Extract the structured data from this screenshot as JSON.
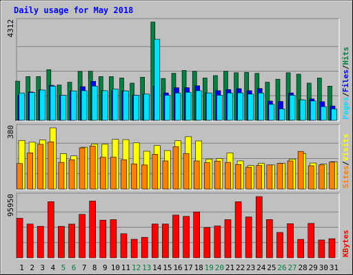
{
  "chart_data": {
    "type": "bar",
    "title": "Daily usage for May 2018",
    "days": [
      "1",
      "2",
      "3",
      "4",
      "5",
      "6",
      "7",
      "8",
      "9",
      "10",
      "11",
      "12",
      "13",
      "14",
      "15",
      "16",
      "17",
      "18",
      "19",
      "20",
      "21",
      "22",
      "23",
      "24",
      "25",
      "26",
      "27",
      "28",
      "29",
      "30",
      "31"
    ],
    "weekend_days": [
      "5",
      "6",
      "12",
      "13",
      "19",
      "20",
      "26",
      "27"
    ],
    "panels": [
      {
        "name": "hits-files-pages",
        "max_label": "4312",
        "ymax": 4312,
        "series": [
          {
            "name": "Hits",
            "color": "#008040",
            "values": [
              1718,
              1918,
              1918,
              2223,
              1549,
              1672,
              2146,
              2151,
              1918,
              1918,
              1856,
              1631,
              1892,
              4312,
              1836,
              2064,
              2188,
              2151,
              1856,
              1961,
              2151,
              2088,
              2104,
              2061,
              1672,
              1803,
              2088,
              2024,
              1631,
              1856,
              1500
            ]
          },
          {
            "name": "Files",
            "color": "#0000ff",
            "values": [
              1100,
              1242,
              1329,
              1535,
              1100,
              1290,
              1475,
              1711,
              1300,
              1300,
              1293,
              1100,
              1150,
              1500,
              1200,
              1431,
              1432,
              1515,
              1200,
              1300,
              1350,
              1389,
              1300,
              1397,
              845,
              830,
              1200,
              900,
              942,
              816,
              630
            ]
          },
          {
            "name": "Pages",
            "color": "#00e0ff",
            "values": [
              1200,
              1220,
              1329,
              1500,
              1100,
              1290,
              1300,
              1500,
              1300,
              1375,
              1293,
              1100,
              1150,
              3555,
              1100,
              1200,
              1232,
              1300,
              1200,
              1100,
              1200,
              1204,
              1150,
              1200,
              700,
              500,
              1100,
              900,
              850,
              600,
              500
            ]
          }
        ],
        "legend": [
          "Pages",
          "/",
          "Files",
          "/",
          "Hits"
        ]
      },
      {
        "name": "visits-sites",
        "max_label": "380",
        "ymax": 380,
        "series": [
          {
            "name": "Visits",
            "color": "#ffff00",
            "values": [
              302,
              291,
              305,
              380,
              220,
              206,
              260,
              280,
              279,
              309,
              307,
              287,
              235,
              270,
              239,
              300,
              325,
              299,
              186,
              190,
              225,
              175,
              146,
              160,
              150,
              160,
              186,
              221,
              162,
              155,
              170
            ]
          },
          {
            "name": "Sites",
            "color": "#ff8000",
            "values": [
              159,
              225,
              278,
              293,
              166,
              182,
              256,
              267,
              198,
              198,
              182,
              156,
              150,
              216,
              175,
              263,
              221,
              175,
              164,
              174,
              166,
              153,
              136,
              147,
              150,
              160,
              175,
              234,
              145,
              150,
              168
            ]
          }
        ],
        "legend": [
          "Sites",
          "/",
          "Visits"
        ]
      },
      {
        "name": "kbytes",
        "max_label": "95950",
        "ymax": 95950,
        "series": [
          {
            "name": "KBytes",
            "color": "#ff0000",
            "values": [
              62048,
              53017,
              49434,
              88011,
              49434,
              52941,
              68150,
              89014,
              59097,
              59898,
              37883,
              29090,
              32117,
              53017,
              53017,
              67053,
              65000,
              72000,
              47500,
              50000,
              59898,
              87953,
              64100,
              95950,
              60000,
              39850,
              53500,
              29000,
              54000,
              28000,
              30000
            ]
          }
        ],
        "legend": [
          "KBytes"
        ]
      }
    ]
  },
  "colors": {
    "background": "#c0c0c0",
    "panel_bg": "#c0c0c0",
    "title": "#0000ff",
    "weekday_label": "#000000",
    "weekend_label": "#008040",
    "hits": "#008040",
    "files": "#0000ff",
    "pages": "#00e0ff",
    "visits": "#ffff00",
    "sites": "#ff8000",
    "kbytes": "#ff0000",
    "separator": "#808080"
  }
}
